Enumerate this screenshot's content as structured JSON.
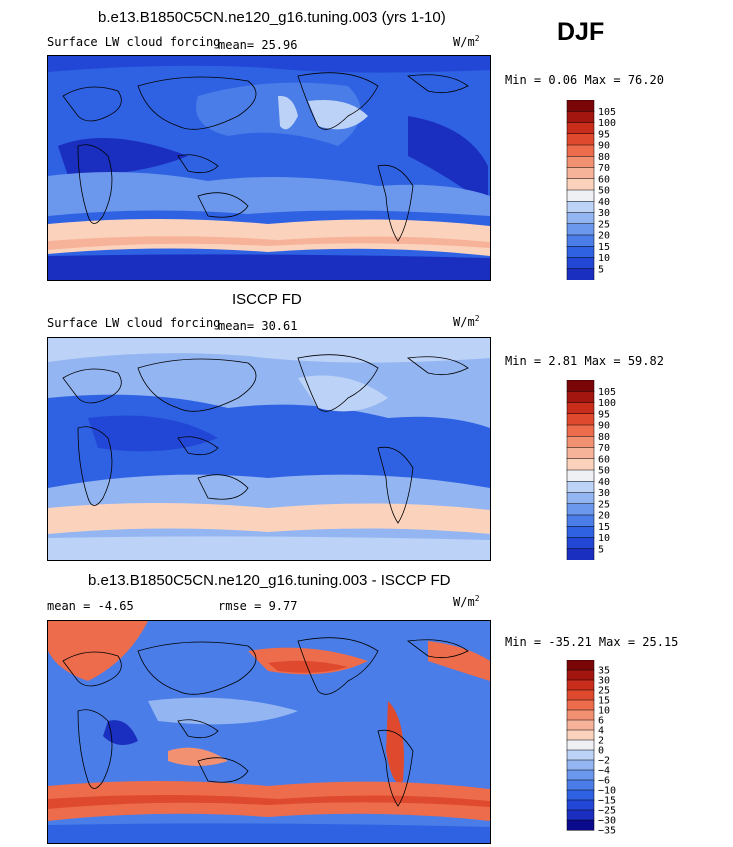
{
  "season": "DJF",
  "colors": {
    "cloud_forcing": [
      "#0a0a8c",
      "#1a2fbf",
      "#2247d6",
      "#2f62e3",
      "#4a7de8",
      "#6b97ec",
      "#93b5f2",
      "#bdd2f7",
      "#eef0f4",
      "#fbd3bd",
      "#f7b39a",
      "#f29072",
      "#ec6c4c",
      "#df4a2e",
      "#c92d1c",
      "#a3150f",
      "#7a0608"
    ],
    "difference": [
      "#0a0a8c",
      "#1a2fbf",
      "#2247d6",
      "#2f62e3",
      "#4a7de8",
      "#6b97ec",
      "#93b5f2",
      "#bdd2f7",
      "#eef0f4",
      "#fbd3bd",
      "#f7b39a",
      "#f29072",
      "#ec6c4c",
      "#df4a2e",
      "#c92d1c",
      "#a3150f",
      "#7a0608"
    ]
  },
  "panels": [
    {
      "title": "b.e13.B1850C5CN.ne120_g16.tuning.003 (yrs 1-10)",
      "variable": "Surface LW cloud forcing",
      "stat_text": "mean=  25.96",
      "units": "W/m",
      "units_exp": "2",
      "minmax": "Min =   0.06 Max =  76.20",
      "colorbar_labels": [
        "105",
        "100",
        "95",
        "90",
        "80",
        "70",
        "60",
        "50",
        "40",
        "30",
        "25",
        "20",
        "15",
        "10",
        "5"
      ]
    },
    {
      "title": "ISCCP FD",
      "variable": "Surface LW cloud forcing",
      "stat_text": "mean=  30.61",
      "units": "W/m",
      "units_exp": "2",
      "minmax": "Min =   2.81 Max =  59.82",
      "colorbar_labels": [
        "105",
        "100",
        "95",
        "90",
        "80",
        "70",
        "60",
        "50",
        "40",
        "30",
        "25",
        "20",
        "15",
        "10",
        "5"
      ]
    },
    {
      "title": "b.e13.B1850C5CN.ne120_g16.tuning.003 - ISCCP FD",
      "variable": "",
      "stat_text": "mean =  -4.65",
      "rmse_text": "rmse =   9.77",
      "units": "W/m",
      "units_exp": "2",
      "minmax": "Min = -35.21 Max =  25.15",
      "colorbar_labels": [
        "35",
        "30",
        "25",
        "15",
        "10",
        "6",
        "4",
        "2",
        "0",
        "−2",
        "−4",
        "−6",
        "−10",
        "−15",
        "−25",
        "−30",
        "−35"
      ]
    }
  ],
  "chart_data": [
    {
      "type": "heatmap",
      "title": "b.e13.B1850C5CN.ne120_g16.tuning.003 (yrs 1-10)",
      "variable": "Surface LW cloud forcing",
      "units": "W/m2",
      "season": "DJF",
      "mean": 25.96,
      "min": 0.06,
      "max": 76.2,
      "contour_levels": [
        5,
        10,
        15,
        20,
        25,
        30,
        40,
        50,
        60,
        70,
        80,
        90,
        95,
        100,
        105
      ]
    },
    {
      "type": "heatmap",
      "title": "ISCCP FD",
      "variable": "Surface LW cloud forcing",
      "units": "W/m2",
      "season": "DJF",
      "mean": 30.61,
      "min": 2.81,
      "max": 59.82,
      "contour_levels": [
        5,
        10,
        15,
        20,
        25,
        30,
        40,
        50,
        60,
        70,
        80,
        90,
        95,
        100,
        105
      ]
    },
    {
      "type": "heatmap",
      "title": "b.e13.B1850C5CN.ne120_g16.tuning.003 - ISCCP FD",
      "units": "W/m2",
      "season": "DJF",
      "mean": -4.65,
      "rmse": 9.77,
      "min": -35.21,
      "max": 25.15,
      "contour_levels": [
        -35,
        -30,
        -25,
        -15,
        -10,
        -6,
        -4,
        -2,
        0,
        2,
        4,
        6,
        10,
        15,
        25,
        30,
        35
      ]
    }
  ]
}
